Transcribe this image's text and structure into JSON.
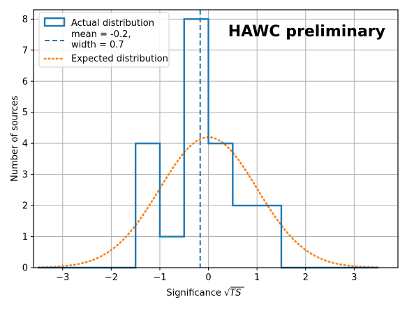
{
  "chart_data": {
    "type": "histogram",
    "annotation": "HAWC preliminary",
    "xlabel": "Significance",
    "xlabel_math": "√TS",
    "ylabel": "Number of sources",
    "xlim": [
      -3.6,
      3.9
    ],
    "ylim": [
      0,
      8.3
    ],
    "xticks": [
      -3,
      -2,
      -1,
      0,
      1,
      2,
      3
    ],
    "xtick_labels": [
      "−3",
      "−2",
      "−1",
      "0",
      "1",
      "2",
      "3"
    ],
    "yticks": [
      0,
      1,
      2,
      3,
      4,
      5,
      6,
      7,
      8
    ],
    "ytick_labels": [
      "0",
      "1",
      "2",
      "3",
      "4",
      "5",
      "6",
      "7",
      "8"
    ],
    "grid": true,
    "legend_position": "top-left",
    "bins": [
      {
        "x0": -3.5,
        "x1": -1.5,
        "count": 0
      },
      {
        "x0": -1.5,
        "x1": -1.0,
        "count": 4
      },
      {
        "x0": -1.0,
        "x1": -0.5,
        "count": 1
      },
      {
        "x0": -0.5,
        "x1": 0.0,
        "count": 8
      },
      {
        "x0": 0.0,
        "x1": 0.5,
        "count": 4
      },
      {
        "x0": 0.5,
        "x1": 1.0,
        "count": 2
      },
      {
        "x0": 1.0,
        "x1": 1.5,
        "count": 2
      },
      {
        "x0": 1.5,
        "x1": 3.5,
        "count": 0
      }
    ],
    "mean_line": {
      "x": -0.17
    },
    "expected_curve": {
      "peak": 4.2,
      "mean": 0.0,
      "sigma": 1.0,
      "x_range": [
        -3.5,
        3.5
      ]
    },
    "series": [
      {
        "name": "Actual distribution",
        "style": "step",
        "color": "#1f77b4"
      },
      {
        "name": "mean = -0.2,\nwidth = 0.7",
        "style": "dashed",
        "color": "#1f77b4"
      },
      {
        "name": "Expected distribution",
        "style": "dotted",
        "color": "#ff7f0e"
      }
    ]
  }
}
